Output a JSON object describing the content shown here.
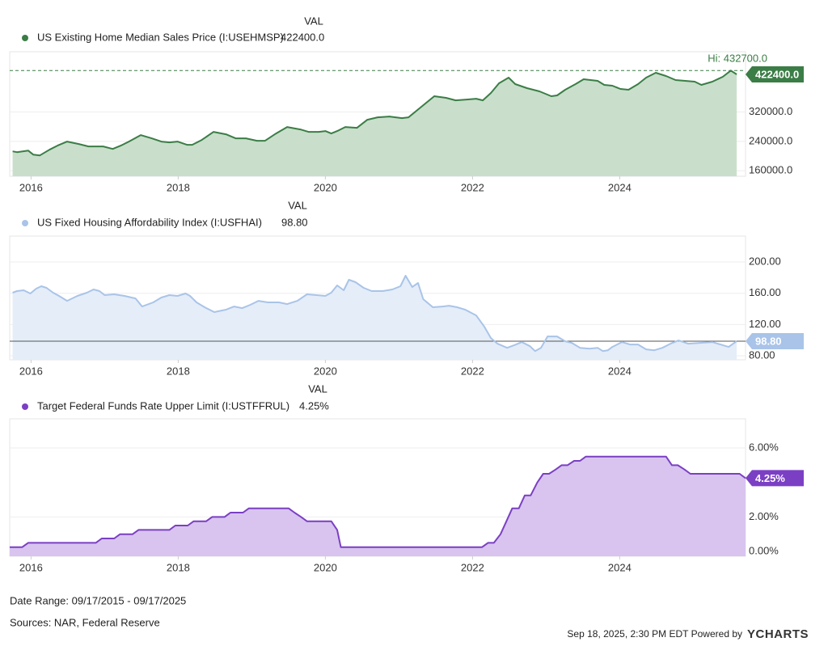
{
  "chart_data": [
    {
      "type": "area",
      "column_header": "VAL",
      "series": [
        {
          "name": "US Existing Home Median Sales Price (I:USEHMSP)",
          "color": "#3b7d46",
          "fill": "#c9dfcb",
          "x": [
            2015.75,
            2015.81,
            2015.96,
            2016.03,
            2016.12,
            2016.25,
            2016.36,
            2016.49,
            2016.65,
            2016.78,
            2016.98,
            2017.11,
            2017.22,
            2017.33,
            2017.49,
            2017.64,
            2017.77,
            2017.88,
            2017.99,
            2018.12,
            2018.19,
            2018.32,
            2018.48,
            2018.65,
            2018.78,
            2018.92,
            2019.07,
            2019.18,
            2019.33,
            2019.48,
            2019.66,
            2019.77,
            2019.91,
            2020.0,
            2020.08,
            2020.16,
            2020.27,
            2020.43,
            2020.57,
            2020.71,
            2020.87,
            2021.04,
            2021.13,
            2021.29,
            2021.48,
            2021.64,
            2021.77,
            2021.92,
            2022.05,
            2022.14,
            2022.25,
            2022.36,
            2022.49,
            2022.58,
            2022.74,
            2022.91,
            2023.07,
            2023.15,
            2023.26,
            2023.4,
            2023.51,
            2023.7,
            2023.79,
            2023.9,
            2024.01,
            2024.12,
            2024.25,
            2024.36,
            2024.49,
            2024.63,
            2024.76,
            2024.89,
            2025.02,
            2025.11,
            2025.26,
            2025.4,
            2025.51,
            2025.59
          ],
          "values": [
            212900,
            210700,
            215100,
            204100,
            201900,
            217300,
            228400,
            239400,
            232800,
            226200,
            226200,
            219500,
            228400,
            239400,
            257000,
            248200,
            239400,
            237200,
            239400,
            230600,
            230600,
            243800,
            265800,
            259200,
            248200,
            248200,
            241600,
            241600,
            261400,
            279100,
            272500,
            265800,
            265800,
            268000,
            261400,
            268000,
            279100,
            276900,
            298900,
            305500,
            307700,
            303300,
            305500,
            332000,
            362900,
            358500,
            351800,
            354000,
            356200,
            351800,
            371700,
            398100,
            413600,
            395900,
            384900,
            376100,
            362900,
            365100,
            380500,
            395900,
            409200,
            404800,
            393700,
            391500,
            382700,
            380500,
            395900,
            413600,
            426800,
            418000,
            407000,
            404800,
            402600,
            393700,
            402600,
            415800,
            432700,
            422400
          ],
          "last_value_label": "422400.0"
        }
      ],
      "high": {
        "value": 432700,
        "label": "Hi: 432700.0"
      },
      "xlim": [
        2015.71,
        2025.71
      ],
      "xticks": [
        2016,
        2018,
        2020,
        2022,
        2024
      ],
      "ylim": [
        145000,
        484000
      ],
      "yticks": [
        {
          "value": 160000,
          "label": "160000.0"
        },
        {
          "value": 240000,
          "label": "240000.0"
        },
        {
          "value": 320000,
          "label": "320000.0"
        }
      ],
      "grid": true
    },
    {
      "type": "area",
      "column_header": "VAL",
      "series": [
        {
          "name": "US Fixed Housing Affordability Index (I:USFHAI)",
          "color": "#a9c4e8",
          "fill": "#e5edf9",
          "x": [
            2015.75,
            2015.81,
            2015.9,
            2015.99,
            2016.07,
            2016.14,
            2016.21,
            2016.3,
            2016.38,
            2016.49,
            2016.63,
            2016.76,
            2016.85,
            2016.93,
            2017.0,
            2017.13,
            2017.27,
            2017.42,
            2017.51,
            2017.66,
            2017.77,
            2017.88,
            2017.99,
            2018.1,
            2018.16,
            2018.25,
            2018.36,
            2018.49,
            2018.65,
            2018.76,
            2018.87,
            2018.98,
            2019.09,
            2019.22,
            2019.37,
            2019.48,
            2019.62,
            2019.75,
            2019.88,
            2020.0,
            2020.08,
            2020.16,
            2020.25,
            2020.32,
            2020.41,
            2020.52,
            2020.63,
            2020.78,
            2020.91,
            2021.02,
            2021.09,
            2021.18,
            2021.26,
            2021.33,
            2021.46,
            2021.59,
            2021.68,
            2021.79,
            2021.9,
            2022.05,
            2022.16,
            2022.25,
            2022.34,
            2022.47,
            2022.56,
            2022.67,
            2022.78,
            2022.85,
            2022.93,
            2023.02,
            2023.15,
            2023.26,
            2023.35,
            2023.46,
            2023.59,
            2023.7,
            2023.77,
            2023.84,
            2023.9,
            2024.03,
            2024.14,
            2024.25,
            2024.36,
            2024.47,
            2024.58,
            2024.69,
            2024.8,
            2024.93,
            2025.09,
            2025.26,
            2025.37,
            2025.48,
            2025.59
          ],
          "values": [
            160.7,
            162.8,
            163.8,
            159.7,
            165.9,
            169.0,
            166.9,
            160.7,
            156.6,
            150.3,
            156.6,
            160.7,
            164.8,
            162.8,
            157.6,
            158.6,
            156.6,
            153.4,
            143.1,
            148.3,
            154.5,
            157.6,
            156.6,
            159.7,
            156.6,
            148.3,
            142.1,
            135.9,
            139.0,
            143.1,
            141.0,
            145.2,
            150.3,
            148.3,
            148.3,
            146.2,
            150.3,
            158.6,
            157.6,
            156.6,
            160.7,
            170.0,
            163.8,
            177.2,
            174.1,
            166.9,
            162.8,
            162.8,
            164.8,
            169.0,
            182.4,
            167.9,
            173.1,
            152.4,
            142.1,
            143.1,
            144.1,
            142.1,
            139.0,
            131.7,
            117.2,
            102.8,
            95.5,
            90.3,
            93.4,
            97.6,
            92.4,
            86.2,
            90.3,
            104.8,
            104.8,
            98.6,
            96.6,
            90.3,
            89.3,
            90.3,
            86.2,
            87.2,
            91.4,
            97.6,
            94.5,
            94.5,
            88.3,
            87.2,
            90.3,
            95.5,
            99.7,
            95.5,
            96.6,
            97.6,
            94.5,
            91.4,
            98.8
          ],
          "last_value_label": "98.80"
        }
      ],
      "xlim": [
        2015.71,
        2025.71
      ],
      "xticks": [
        2016,
        2018,
        2020,
        2022,
        2024
      ],
      "ylim": [
        75,
        233
      ],
      "yticks": [
        {
          "value": 80,
          "label": "80.00"
        },
        {
          "value": 120,
          "label": "120.00"
        },
        {
          "value": 160,
          "label": "160.00"
        },
        {
          "value": 200,
          "label": "200.00"
        }
      ],
      "grid": true
    },
    {
      "type": "area",
      "column_header": "VAL",
      "series": [
        {
          "name": "Target Federal Funds Rate Upper Limit (I:USTFFRUL)",
          "color": "#7b3fc4",
          "fill": "#d8c4ef",
          "x": [
            2015.71,
            2015.88,
            2015.96,
            2016.88,
            2016.96,
            2017.13,
            2017.21,
            2017.38,
            2017.46,
            2017.88,
            2017.96,
            2018.13,
            2018.21,
            2018.38,
            2018.46,
            2018.63,
            2018.71,
            2018.88,
            2018.96,
            2019.5,
            2019.58,
            2019.67,
            2019.75,
            2020.08,
            2020.16,
            2020.21,
            2022.13,
            2022.21,
            2022.29,
            2022.38,
            2022.46,
            2022.54,
            2022.63,
            2022.71,
            2022.79,
            2022.88,
            2022.96,
            2023.04,
            2023.13,
            2023.21,
            2023.29,
            2023.38,
            2023.46,
            2023.54,
            2024.63,
            2024.71,
            2024.79,
            2024.88,
            2024.96,
            2025.63,
            2025.71
          ],
          "values": [
            0.25,
            0.25,
            0.5,
            0.5,
            0.75,
            0.75,
            1.0,
            1.0,
            1.25,
            1.25,
            1.5,
            1.5,
            1.75,
            1.75,
            2.0,
            2.0,
            2.25,
            2.25,
            2.5,
            2.5,
            2.25,
            2.0,
            1.75,
            1.75,
            1.25,
            0.25,
            0.25,
            0.5,
            0.5,
            1.0,
            1.75,
            2.5,
            2.5,
            3.25,
            3.25,
            4.0,
            4.5,
            4.5,
            4.75,
            5.0,
            5.0,
            5.25,
            5.25,
            5.5,
            5.5,
            5.0,
            5.0,
            4.75,
            4.5,
            4.5,
            4.25
          ],
          "last_value_label": "4.25%"
        }
      ],
      "xlim": [
        2015.71,
        2025.71
      ],
      "xticks": [
        2016,
        2018,
        2020,
        2022,
        2024
      ],
      "ylim": [
        -0.28,
        7.69
      ],
      "yticks": [
        {
          "value": 0,
          "label": "0.00%"
        },
        {
          "value": 2,
          "label": "2.00%"
        },
        {
          "value": 6,
          "label": "6.00%"
        }
      ],
      "grid": true
    }
  ],
  "footer": {
    "date_range": "Date Range: 09/17/2015 - 09/17/2025",
    "sources": "Sources: NAR, Federal Reserve",
    "timestamp": "Sep 18, 2025, 2:30 PM EDT Powered by",
    "brand": "YCHARTS"
  }
}
